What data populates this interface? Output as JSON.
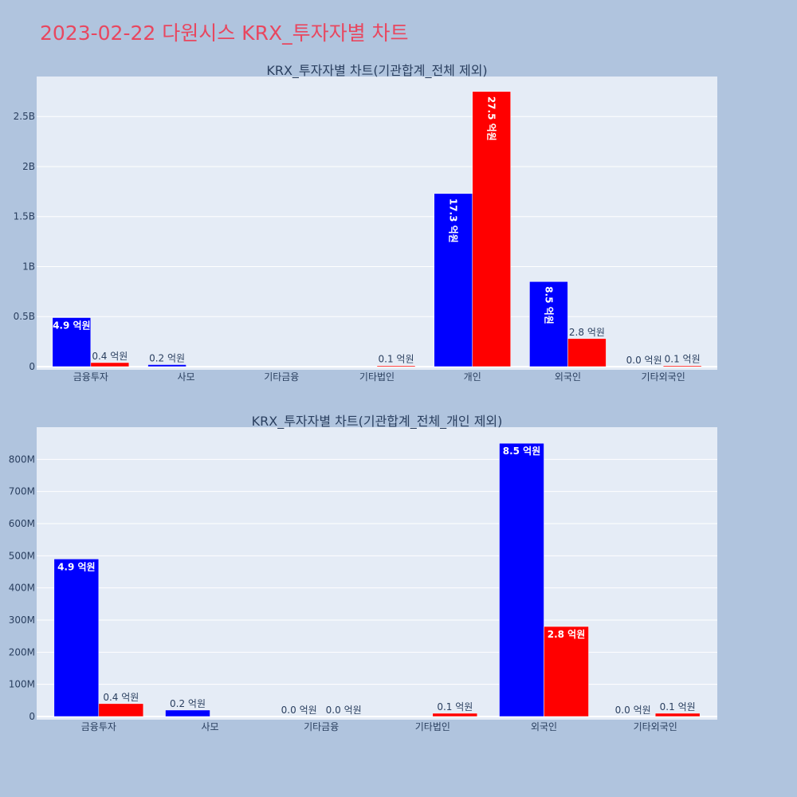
{
  "page": {
    "title": "2023-02-22 다원시스 KRX_투자자별 차트"
  },
  "colors": {
    "background": "#b0c4de",
    "plot_bg": "#e5ecf6",
    "title": "#e8475f",
    "series_1": "#0000ff",
    "series_2": "#ff0000",
    "text": "#2a3f5f"
  },
  "chart_data": [
    {
      "type": "bar",
      "title": "KRX_투자자별 차트(기관합계_전체 제외)",
      "categories": [
        "금융투자",
        "사모",
        "기타금융",
        "기타법인",
        "개인",
        "외국인",
        "기타외국인"
      ],
      "series": [
        {
          "color": "#0000ff",
          "values": [
            490000000,
            20000000,
            0,
            0,
            1730000000,
            850000000,
            0
          ],
          "labels": [
            "4.9 억원",
            "0.2 억원",
            "",
            "",
            "17.3 억원",
            "8.5 억원",
            "0.0 억원"
          ]
        },
        {
          "color": "#ff0000",
          "values": [
            40000000,
            0,
            0,
            10000000,
            2750000000,
            280000000,
            10000000
          ],
          "labels": [
            "0.4 억원",
            "",
            "",
            "0.1 억원",
            "27.5 억원",
            "2.8 억원",
            "0.1 억원"
          ]
        }
      ],
      "yticks": [
        0,
        500000000,
        1000000000,
        1500000000,
        2000000000,
        2500000000
      ],
      "ytick_labels": [
        "0",
        "0.5B",
        "1B",
        "1.5B",
        "2B",
        "2.5B"
      ],
      "ylim": [
        0,
        2900000000
      ],
      "grid": true
    },
    {
      "type": "bar",
      "title": "KRX_투자자별 차트(기관합계_전체_개인 제외)",
      "categories": [
        "금융투자",
        "사모",
        "기타금융",
        "기타법인",
        "외국인",
        "기타외국인"
      ],
      "series": [
        {
          "color": "#0000ff",
          "values": [
            490000000,
            20000000,
            0,
            0,
            850000000,
            0
          ],
          "labels": [
            "4.9 억원",
            "0.2 억원",
            "0.0 억원",
            "",
            "8.5 억원",
            "0.0 억원"
          ]
        },
        {
          "color": "#ff0000",
          "values": [
            40000000,
            0,
            0,
            10000000,
            280000000,
            10000000
          ],
          "labels": [
            "0.4 억원",
            "",
            "0.0 억원",
            "0.1 억원",
            "2.8 억원",
            "0.1 억원"
          ]
        }
      ],
      "yticks": [
        0,
        100000000,
        200000000,
        300000000,
        400000000,
        500000000,
        600000000,
        700000000,
        800000000
      ],
      "ytick_labels": [
        "0",
        "100M",
        "200M",
        "300M",
        "400M",
        "500M",
        "600M",
        "700M",
        "800M"
      ],
      "ylim": [
        0,
        900000000
      ],
      "grid": true
    }
  ]
}
